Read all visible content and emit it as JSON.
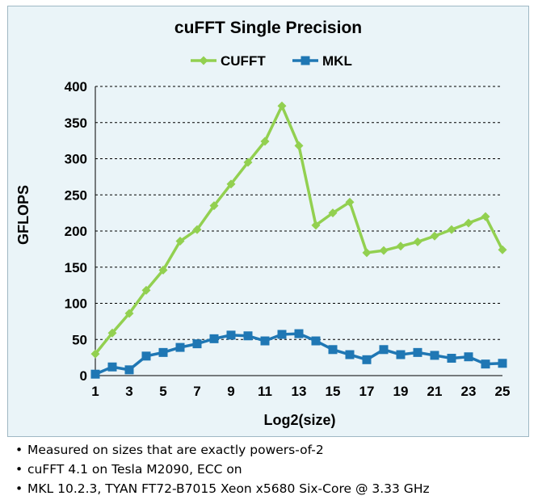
{
  "chart_data": {
    "type": "line",
    "title": "cuFFT Single Precision",
    "xlabel": "Log2(size)",
    "ylabel": "GFLOPS",
    "x": [
      1,
      2,
      3,
      4,
      5,
      6,
      7,
      8,
      9,
      10,
      11,
      12,
      13,
      14,
      15,
      16,
      17,
      18,
      19,
      20,
      21,
      22,
      23,
      24,
      25
    ],
    "xticks": [
      "1",
      "3",
      "5",
      "7",
      "9",
      "11",
      "13",
      "15",
      "17",
      "19",
      "21",
      "23",
      "25"
    ],
    "yticks": [
      "0",
      "50",
      "100",
      "150",
      "200",
      "250",
      "300",
      "350",
      "400"
    ],
    "ylim": [
      0,
      400
    ],
    "grid": "horizontal dashed",
    "legend": "top",
    "series": [
      {
        "name": "CUFFT",
        "color": "#92d050",
        "marker": "diamond",
        "values": [
          30,
          59,
          86,
          118,
          146,
          186,
          202,
          235,
          265,
          295,
          324,
          373,
          318,
          208,
          225,
          240,
          170,
          173,
          179,
          185,
          193,
          202,
          211,
          220,
          174
        ]
      },
      {
        "name": "MKL",
        "color": "#1f77b4",
        "marker": "square",
        "values": [
          2,
          12,
          8,
          27,
          32,
          39,
          44,
          51,
          56,
          55,
          48,
          57,
          58,
          48,
          36,
          29,
          22,
          36,
          29,
          32,
          28,
          24,
          26,
          16,
          17
        ]
      }
    ]
  },
  "notes": [
    "Measured on sizes that are exactly powers-of-2",
    "cuFFT 4.1 on Tesla M2090, ECC on",
    "MKL 10.2.3, TYAN FT72-B7015 Xeon x5680 Six-Core @ 3.33 GHz"
  ]
}
